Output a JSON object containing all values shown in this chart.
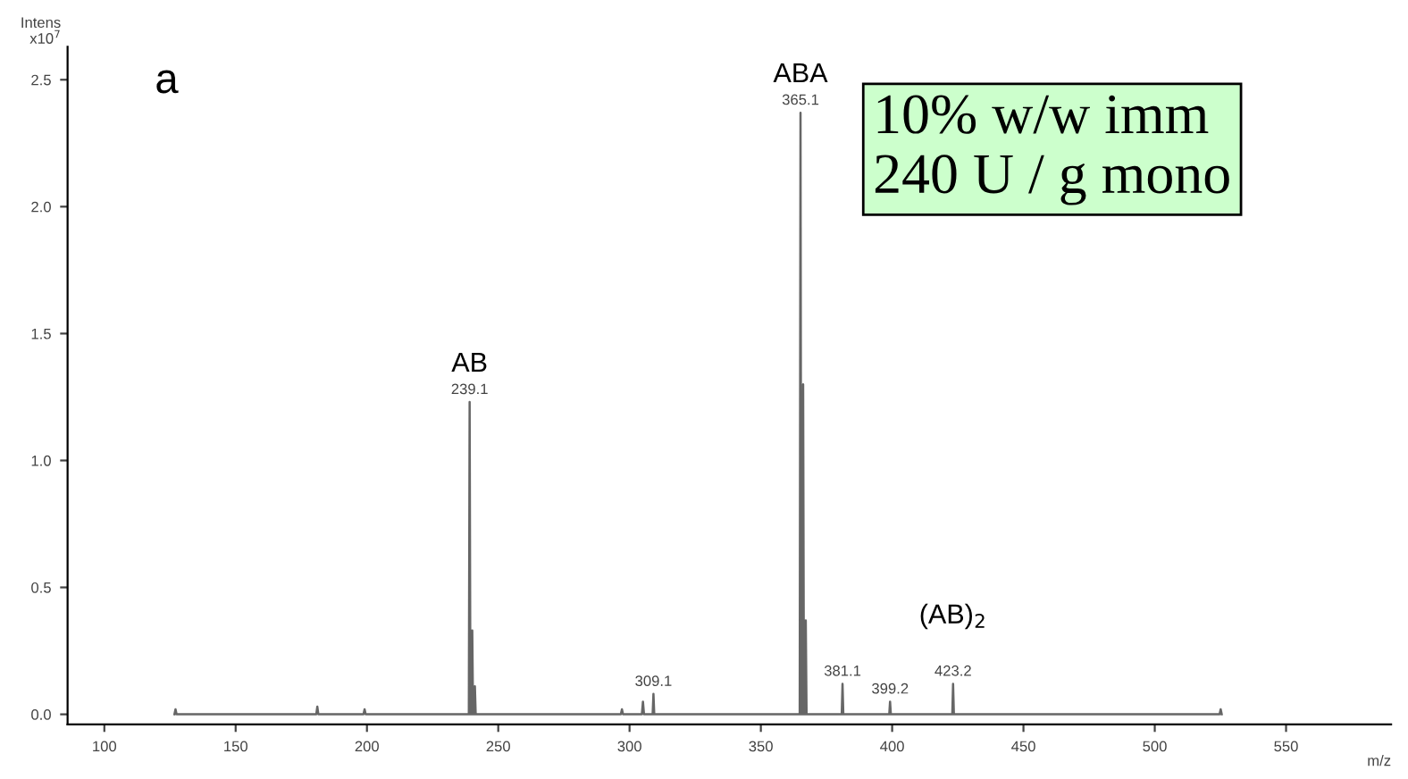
{
  "chart_data": {
    "type": "line",
    "ylabel": "Intens\nx10$^{7}$",
    "xlabel": "m/z",
    "x": [
      126.7,
      127.1,
      127.5,
      180.7,
      181.1,
      181.5,
      198.7,
      199.1,
      199.5,
      238.8,
      239.1,
      239.4,
      239.8,
      240.1,
      240.4,
      240.8,
      241.1,
      241.4,
      296.7,
      297.1,
      297.5,
      304.7,
      305.1,
      305.5,
      308.8,
      309.1,
      309.4,
      364.8,
      365.1,
      365.4,
      365.8,
      366.1,
      366.4,
      366.8,
      367.1,
      367.4,
      380.8,
      381.1,
      381.4,
      398.9,
      399.2,
      399.5,
      422.9,
      423.2,
      423.5,
      524.7,
      525.1,
      525.5
    ],
    "series": [
      {
        "color": "#666666",
        "values": [
          0,
          0.02,
          0,
          0,
          0.03,
          0,
          0,
          0.02,
          0,
          0,
          1.23,
          0,
          0,
          0.33,
          0,
          0,
          0.11,
          0,
          0,
          0.02,
          0,
          0,
          0.05,
          0,
          0,
          0.08,
          0,
          0,
          2.37,
          0,
          0,
          1.3,
          0,
          0,
          0.37,
          0,
          0,
          0.12,
          0,
          0,
          0.05,
          0,
          0,
          0.12,
          0,
          0,
          0.02,
          0
        ]
      }
    ],
    "xlim": [
      86,
      590
    ],
    "xticks": [
      100,
      150,
      200,
      250,
      300,
      350,
      400,
      450,
      500,
      550
    ],
    "ylim": [
      -0.04,
      2.63
    ],
    "yticks": [
      {
        "value": 0,
        "label": "0.0"
      },
      {
        "value": 0.5,
        "label": "0.5"
      },
      {
        "value": 1,
        "label": "1.0"
      },
      {
        "value": 1.5,
        "label": "1.5"
      },
      {
        "value": 2,
        "label": "2.0"
      },
      {
        "value": 2.5,
        "label": "2.5"
      }
    ],
    "grid": false,
    "legend": false,
    "annotations": [
      "a",
      "10% w/w imm\n240 U / g mono",
      {
        "text": "239.1",
        "x": 239.1,
        "y": 1.23
      },
      "AB",
      {
        "text": "365.1",
        "x": 365.1,
        "y": 2.37
      },
      "ABA",
      {
        "text": "309.1",
        "x": 309.1,
        "y": 0.08
      },
      {
        "text": "381.1",
        "x": 381.1,
        "y": 0.12
      },
      {
        "text": "399.2",
        "x": 399.2,
        "y": 0.05
      },
      {
        "text": "423.2",
        "x": 423.2,
        "y": 0.12
      },
      "(AB)$_{2}$"
    ]
  }
}
